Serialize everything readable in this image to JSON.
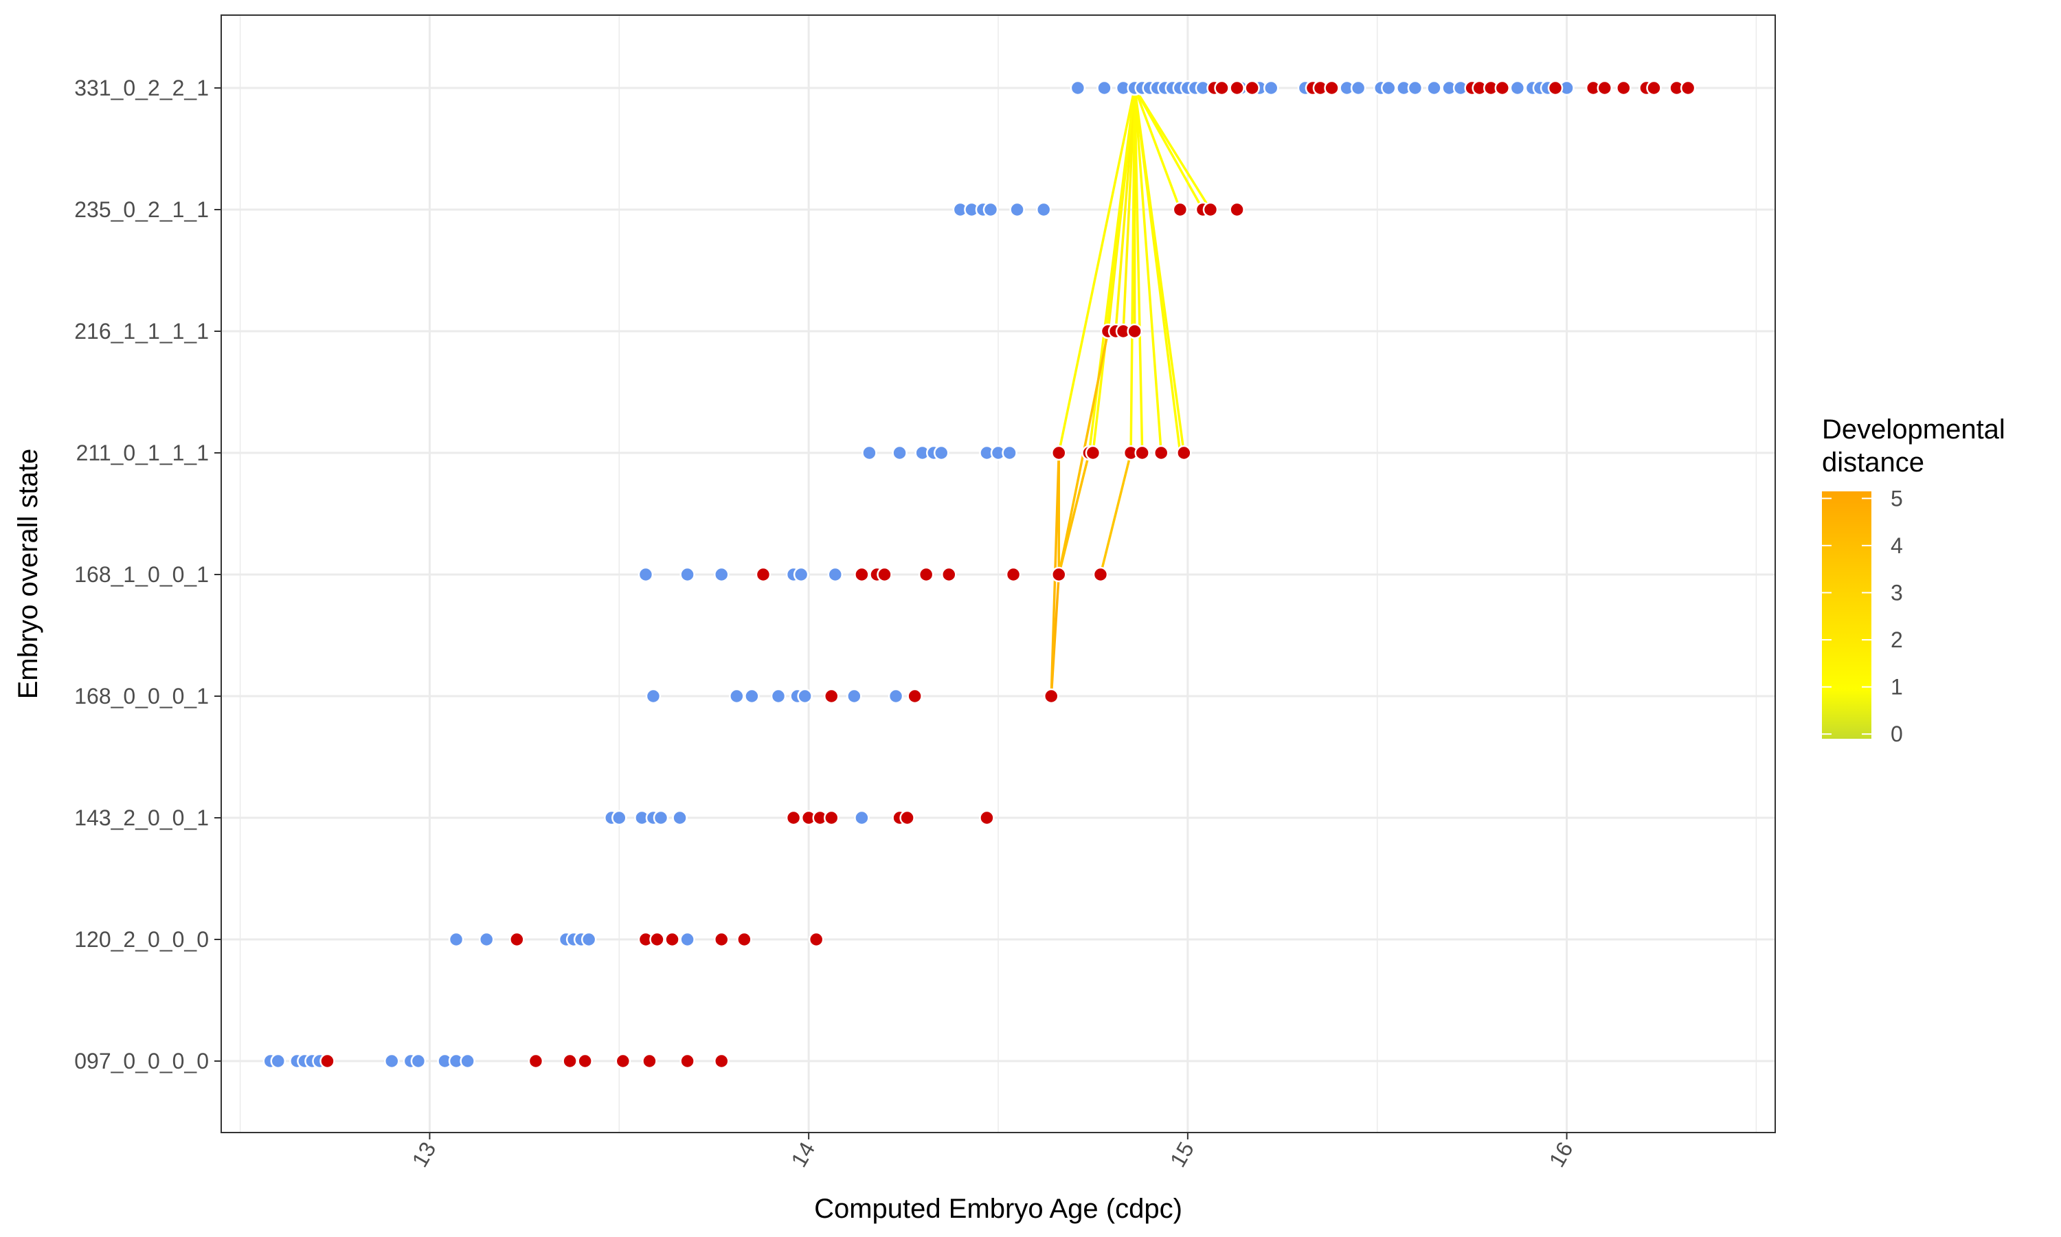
{
  "chart_data": {
    "type": "scatter",
    "xlabel": "Computed Embryo Age (cdpc)",
    "ylabel": "Embryo overall state",
    "xlim": [
      12.45,
      16.55
    ],
    "x_ticks": [
      13,
      14,
      15,
      16
    ],
    "x_tick_labels": [
      "13",
      "14",
      "15",
      "16"
    ],
    "categories": [
      "097_0_0_0_0",
      "120_2_0_0_0",
      "143_2_0_0_1",
      "168_0_0_0_1",
      "168_1_0_0_1",
      "211_0_1_1_1",
      "216_1_1_1_1",
      "235_0_2_1_1",
      "331_0_2_2_1"
    ],
    "grid": true,
    "series": [
      {
        "color": "#6495ED",
        "points": [
          {
            "cat": "097_0_0_0_0",
            "x": [
              12.58,
              12.6,
              12.65,
              12.67,
              12.69,
              12.71,
              12.9,
              12.95,
              12.97,
              13.04,
              13.07,
              13.1
            ]
          },
          {
            "cat": "120_2_0_0_0",
            "x": [
              13.07,
              13.15,
              13.36,
              13.38,
              13.4,
              13.42,
              13.68
            ]
          },
          {
            "cat": "143_2_0_0_1",
            "x": [
              13.48,
              13.5,
              13.56,
              13.59,
              13.61,
              13.66,
              14.14
            ]
          },
          {
            "cat": "168_0_0_0_1",
            "x": [
              13.59,
              13.81,
              13.85,
              13.92,
              13.97,
              13.99,
              14.12,
              14.23
            ]
          },
          {
            "cat": "168_1_0_0_1",
            "x": [
              13.57,
              13.68,
              13.77,
              13.96,
              13.98,
              14.07
            ]
          },
          {
            "cat": "211_0_1_1_1",
            "x": [
              14.16,
              14.24,
              14.3,
              14.33,
              14.35,
              14.47,
              14.5,
              14.53
            ]
          },
          {
            "cat": "235_0_2_1_1",
            "x": [
              14.4,
              14.43,
              14.46,
              14.48,
              14.55,
              14.62
            ]
          },
          {
            "cat": "331_0_2_2_1",
            "x": [
              14.71,
              14.78,
              14.83,
              14.86,
              14.88,
              14.9,
              14.92,
              14.94,
              14.96,
              14.98,
              15.0,
              15.02,
              15.04,
              15.14,
              15.17,
              15.19,
              15.22,
              15.31,
              15.42,
              15.45,
              15.51,
              15.53,
              15.57,
              15.6,
              15.65,
              15.69,
              15.72,
              15.87,
              15.91,
              15.93,
              15.95,
              16.0,
              16.1
            ]
          }
        ]
      },
      {
        "color": "#CC0000",
        "points": [
          {
            "cat": "097_0_0_0_0",
            "x": [
              12.73,
              13.28,
              13.37,
              13.41,
              13.51,
              13.58,
              13.68,
              13.77
            ]
          },
          {
            "cat": "120_2_0_0_0",
            "x": [
              13.23,
              13.57,
              13.6,
              13.64,
              13.77,
              13.83,
              14.02
            ]
          },
          {
            "cat": "143_2_0_0_1",
            "x": [
              13.96,
              14.0,
              14.03,
              14.06,
              14.24,
              14.26,
              14.47
            ]
          },
          {
            "cat": "168_0_0_0_1",
            "x": [
              14.06,
              14.28,
              14.64
            ]
          },
          {
            "cat": "168_1_0_0_1",
            "x": [
              13.88,
              14.14,
              14.18,
              14.2,
              14.31,
              14.37,
              14.54,
              14.66,
              14.77
            ]
          },
          {
            "cat": "211_0_1_1_1",
            "x": [
              14.66,
              14.74,
              14.75,
              14.85,
              14.88,
              14.93,
              14.99
            ]
          },
          {
            "cat": "216_1_1_1_1",
            "x": [
              14.79,
              14.81,
              14.83,
              14.86
            ]
          },
          {
            "cat": "235_0_2_1_1",
            "x": [
              14.98,
              15.04,
              15.06,
              15.13
            ]
          },
          {
            "cat": "331_0_2_2_1",
            "x": [
              15.07,
              15.09,
              15.13,
              15.17,
              15.33,
              15.35,
              15.38,
              15.75,
              15.77,
              15.8,
              15.83,
              15.97,
              16.07,
              16.1,
              16.15,
              16.21,
              16.23,
              16.29,
              16.32
            ]
          }
        ]
      }
    ],
    "segments": {
      "from": {
        "cat": "331_0_2_2_1",
        "x": 14.86
      },
      "to": [
        {
          "cat": "235_0_2_1_1",
          "x": 14.98,
          "d": 1
        },
        {
          "cat": "235_0_2_1_1",
          "x": 15.04,
          "d": 1
        },
        {
          "cat": "235_0_2_1_1",
          "x": 15.06,
          "d": 1
        },
        {
          "cat": "216_1_1_1_1",
          "x": 14.79,
          "d": 1.5
        },
        {
          "cat": "216_1_1_1_1",
          "x": 14.81,
          "d": 1.5
        },
        {
          "cat": "216_1_1_1_1",
          "x": 14.83,
          "d": 1.5
        },
        {
          "cat": "216_1_1_1_1",
          "x": 14.86,
          "d": 1.5
        },
        {
          "cat": "211_0_1_1_1",
          "x": 14.66,
          "d": 1.2
        },
        {
          "cat": "211_0_1_1_1",
          "x": 14.74,
          "d": 1.2
        },
        {
          "cat": "211_0_1_1_1",
          "x": 14.75,
          "d": 1.2
        },
        {
          "cat": "211_0_1_1_1",
          "x": 14.85,
          "d": 1.2
        },
        {
          "cat": "211_0_1_1_1",
          "x": 14.88,
          "d": 1.2
        },
        {
          "cat": "211_0_1_1_1",
          "x": 14.93,
          "d": 1.2
        },
        {
          "cat": "211_0_1_1_1",
          "x": 14.99,
          "d": 1.2
        },
        {
          "cat": "211_0_1_1_1",
          "x": 14.98,
          "d": 1.2
        }
      ],
      "extra": [
        {
          "from": {
            "cat": "211_0_1_1_1",
            "x": 14.85
          },
          "to": {
            "cat": "168_1_0_0_1",
            "x": 14.77
          },
          "d": 3.6
        },
        {
          "from": {
            "cat": "211_0_1_1_1",
            "x": 14.74
          },
          "to": {
            "cat": "168_1_0_0_1",
            "x": 14.66
          },
          "d": 3.8
        },
        {
          "from": {
            "cat": "211_0_1_1_1",
            "x": 14.66
          },
          "to": {
            "cat": "168_1_0_0_1",
            "x": 14.66
          },
          "d": 4.0
        },
        {
          "from": {
            "cat": "216_1_1_1_1",
            "x": 14.79
          },
          "to": {
            "cat": "168_1_0_0_1",
            "x": 14.66
          },
          "d": 3.8
        },
        {
          "from": {
            "cat": "168_1_0_0_1",
            "x": 14.66
          },
          "to": {
            "cat": "168_0_0_0_1",
            "x": 14.64
          },
          "d": 4.5
        },
        {
          "from": {
            "cat": "211_0_1_1_1",
            "x": 14.66
          },
          "to": {
            "cat": "168_0_0_0_1",
            "x": 14.64
          },
          "d": 4.2
        }
      ]
    },
    "legend": {
      "title_lines": [
        "Developmental",
        "distance"
      ],
      "ticks": [
        0,
        1,
        2,
        3,
        4,
        5
      ],
      "tick_labels": [
        "0",
        "1",
        "2",
        "3",
        "4",
        "5"
      ],
      "range": [
        -0.1,
        5.15
      ],
      "position": "right",
      "colors": [
        "#C6DC2A",
        "#FFFF00",
        "#FFD400",
        "#FFA500"
      ]
    }
  }
}
